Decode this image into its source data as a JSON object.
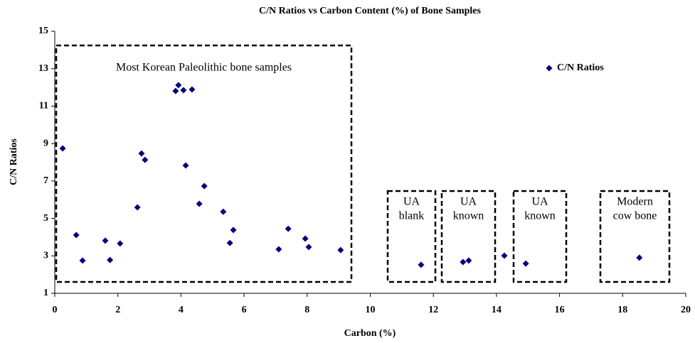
{
  "chart_data": {
    "type": "scatter",
    "title": "C/N Ratios vs Carbon Content (%) of Bone Samples",
    "x_label": "Carbon (%)",
    "y_label": "C/N Ratios",
    "series": [
      {
        "name": "C/N Ratios",
        "color": "#000080",
        "x": [
          0.25,
          0.68,
          0.88,
          1.6,
          1.75,
          2.07,
          2.62,
          2.75,
          2.86,
          3.83,
          3.92,
          4.08,
          4.35,
          4.15,
          4.74,
          4.58,
          5.34,
          5.55,
          5.66,
          7.1,
          7.4,
          7.94,
          8.05,
          9.06,
          11.61,
          12.94,
          13.12,
          14.25,
          14.93,
          18.53
        ],
        "values": [
          8.74,
          4.11,
          2.75,
          3.81,
          2.78,
          3.66,
          5.59,
          8.47,
          8.13,
          11.81,
          12.12,
          11.85,
          11.89,
          7.83,
          6.73,
          5.78,
          5.36,
          3.69,
          4.38,
          3.35,
          4.45,
          3.92,
          3.47,
          3.31,
          2.52,
          2.67,
          2.75,
          3.01,
          2.59,
          2.9
        ]
      }
    ],
    "xlim": [
      0,
      20
    ],
    "xticks": [
      0,
      2,
      4,
      6,
      8,
      10,
      12,
      14,
      16,
      18,
      20
    ],
    "ylim": [
      1,
      15
    ],
    "yticks": [
      1,
      3,
      5,
      7,
      9,
      11,
      13,
      15
    ],
    "grid": false,
    "legend_position": "upper right",
    "annotations": [
      {
        "lines": [
          "Most Korean Paleolithic bone samples"
        ]
      },
      {
        "lines": [
          "UA",
          "blank"
        ]
      },
      {
        "lines": [
          "UA",
          "known"
        ]
      },
      {
        "lines": [
          "UA",
          "known"
        ]
      },
      {
        "lines": [
          "Modern",
          "cow bone"
        ]
      }
    ]
  }
}
